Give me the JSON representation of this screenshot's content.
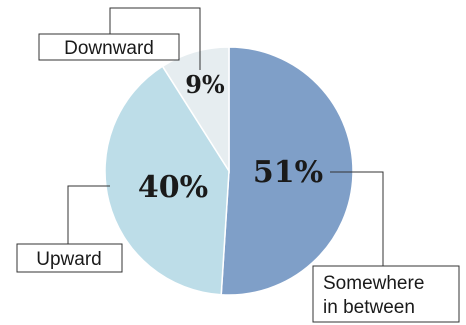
{
  "chart_data": {
    "type": "pie",
    "categories": [
      "Somewhere in between",
      "Upward",
      "Downward"
    ],
    "values": [
      51,
      40,
      9
    ],
    "value_labels": [
      "51%",
      "40%",
      "9%"
    ],
    "label_lines": [
      [
        "Somewhere",
        "in between"
      ],
      [
        "Upward"
      ],
      [
        "Downward"
      ]
    ],
    "colors": [
      "#7f9fc8",
      "#bddde8",
      "#e6edf0"
    ],
    "title": "",
    "legend": "none"
  }
}
